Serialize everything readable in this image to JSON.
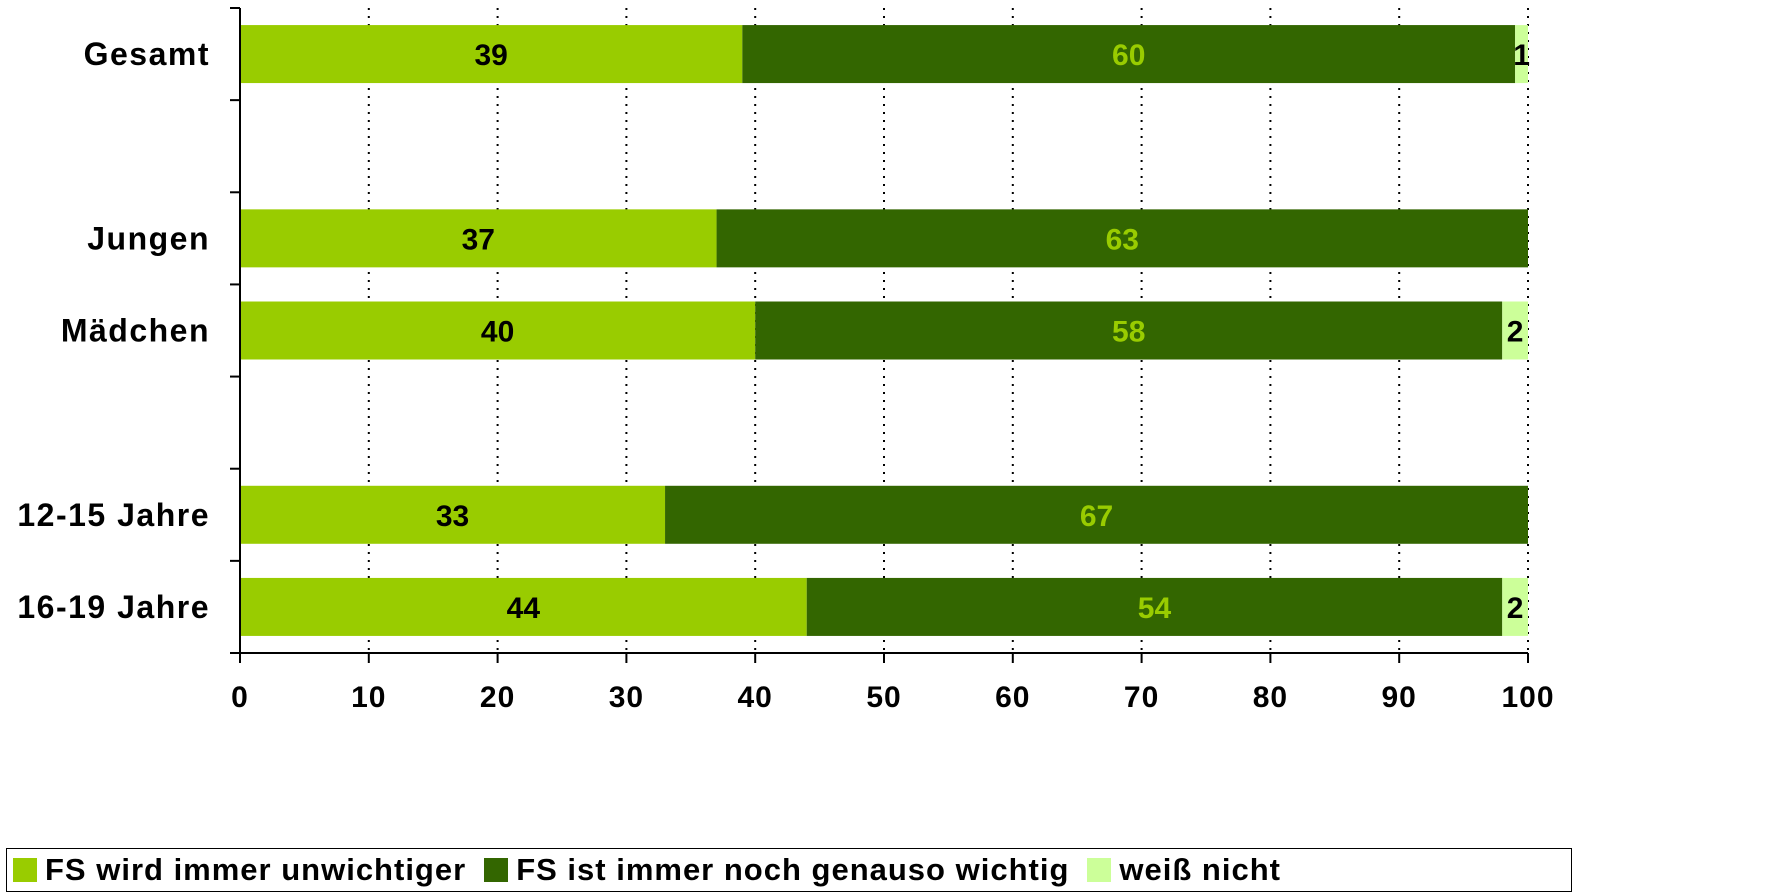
{
  "chart_data": {
    "type": "bar",
    "orientation": "horizontal",
    "stacked": true,
    "categories": [
      "Gesamt",
      "Jungen",
      "Mädchen",
      "12-15 Jahre",
      "16-19 Jahre"
    ],
    "series": [
      {
        "name": "FS wird immer unwichtiger",
        "color": "#99CC00",
        "values": [
          39,
          37,
          40,
          33,
          44
        ],
        "label_color": "#000000"
      },
      {
        "name": "FS ist immer noch genauso wichtig",
        "color": "#336600",
        "values": [
          60,
          63,
          58,
          67,
          54
        ],
        "label_color": "#99CC00"
      },
      {
        "name": "weiß nicht",
        "color": "#CCFF99",
        "values": [
          1,
          0,
          2,
          0,
          2
        ],
        "label_color": "#000000"
      }
    ],
    "xlim": [
      0,
      100
    ],
    "xticks": [
      "0",
      "10",
      "20",
      "30",
      "40",
      "50",
      "60",
      "70",
      "80",
      "90",
      "100"
    ],
    "grid": "vertical dotted",
    "legend": "bottom"
  }
}
